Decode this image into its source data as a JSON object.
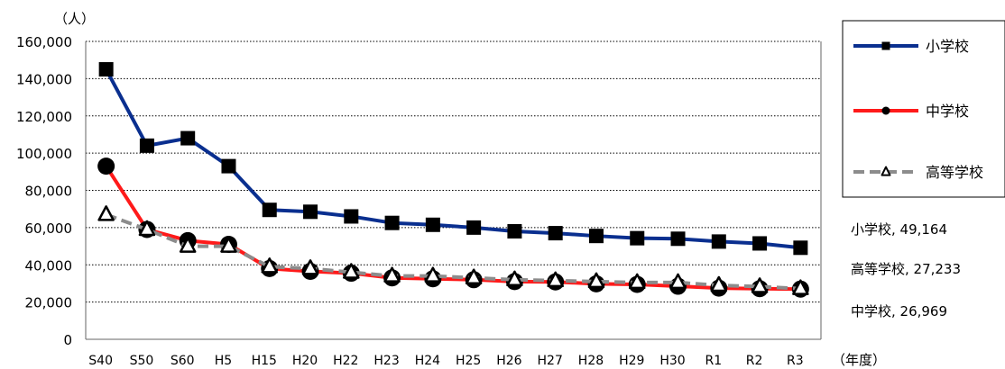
{
  "chart_data": {
    "type": "line",
    "y_unit": "（人）",
    "x_unit": "（年度）",
    "categories": [
      "S40",
      "S50",
      "S60",
      "H5",
      "H15",
      "H20",
      "H22",
      "H23",
      "H24",
      "H25",
      "H26",
      "H27",
      "H28",
      "H29",
      "H30",
      "R1",
      "R2",
      "R3"
    ],
    "ylim": [
      0,
      160000
    ],
    "yticks": [
      "0",
      "20,000",
      "40,000",
      "60,000",
      "80,000",
      "100,000",
      "120,000",
      "140,000",
      "160,000"
    ],
    "grid": true,
    "legend_position": "right",
    "series": [
      {
        "name": "小学校",
        "color": "#0a2f8f",
        "marker": "square",
        "dash": "solid",
        "values": [
          145000,
          104000,
          108000,
          93000,
          69500,
          68500,
          66000,
          62500,
          61500,
          60000,
          58000,
          57000,
          55500,
          54300,
          54000,
          52500,
          51500,
          49164
        ]
      },
      {
        "name": "中学校",
        "color": "#ff1a1a",
        "marker": "circle",
        "dash": "solid",
        "values": [
          93000,
          59000,
          53000,
          51000,
          38000,
          36500,
          35500,
          33000,
          32500,
          32000,
          31000,
          30800,
          29800,
          29500,
          28500,
          27500,
          27200,
          26969
        ]
      },
      {
        "name": "高等学校",
        "color": "#8c8c8c",
        "marker": "triangle",
        "dash": "dashed",
        "values": [
          67000,
          59000,
          50000,
          50000,
          39000,
          38000,
          36000,
          34000,
          34000,
          33000,
          32000,
          31500,
          31000,
          30500,
          30500,
          29000,
          28300,
          27233
        ]
      }
    ],
    "end_labels": [
      "小学校, 49,164",
      "高等学校, 27,233",
      "中学校, 26,969"
    ]
  }
}
